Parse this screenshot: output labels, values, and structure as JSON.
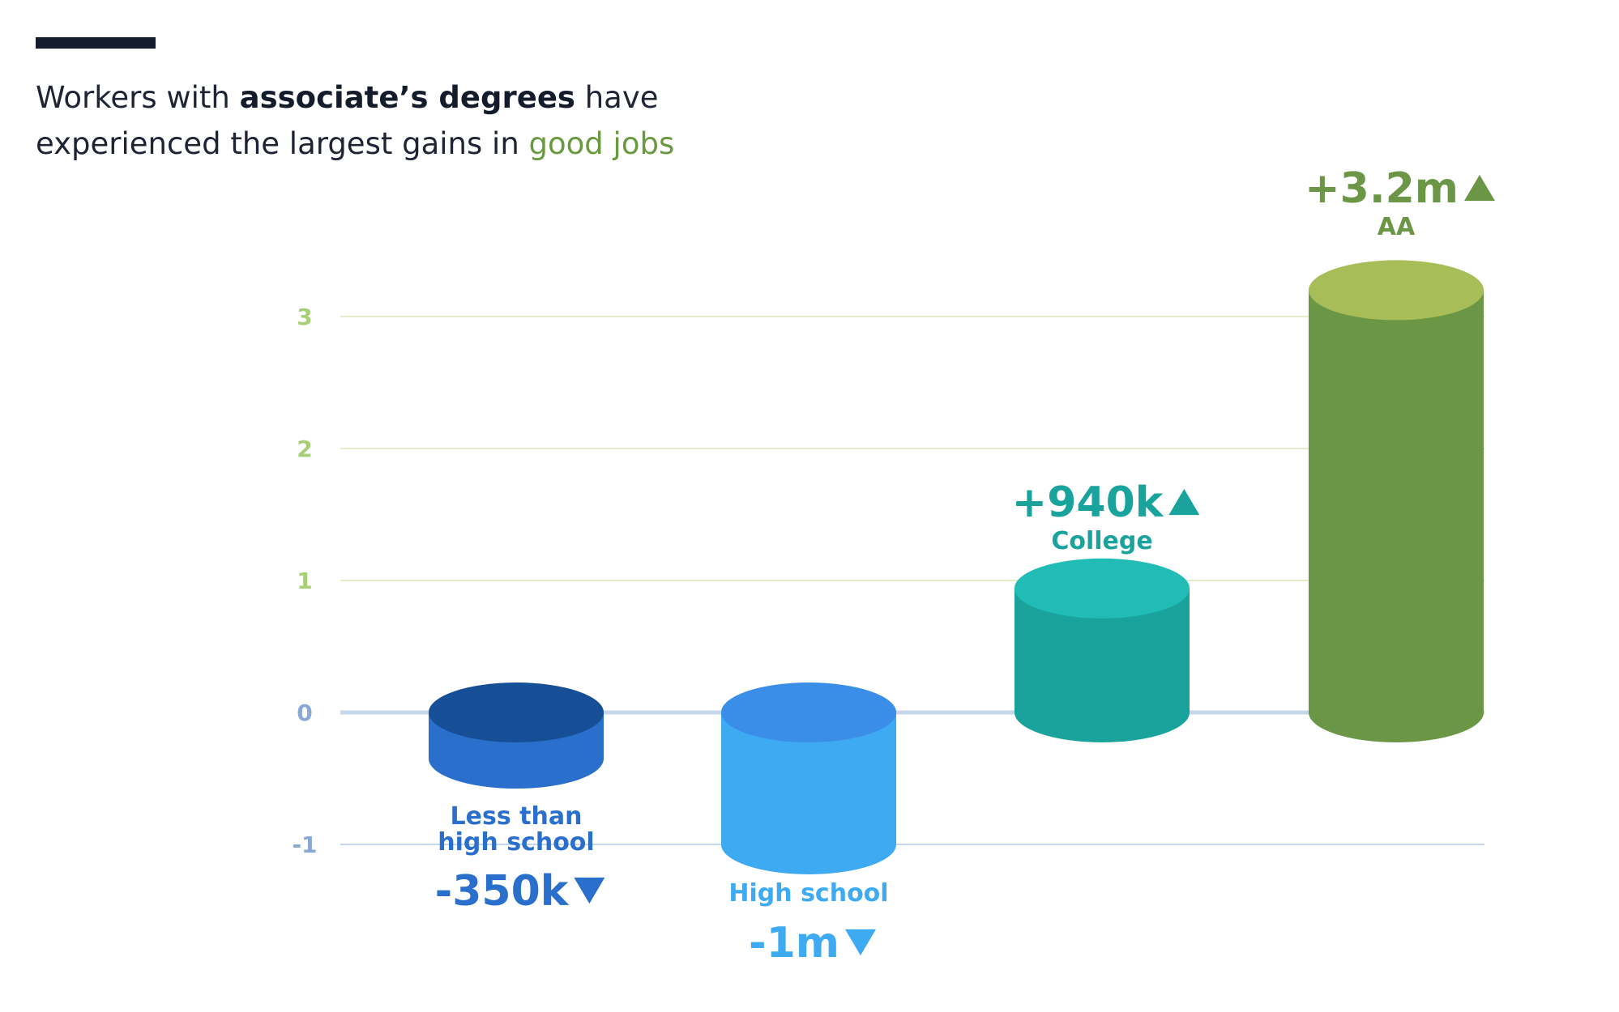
{
  "header": {
    "headline_part1": "Workers with ",
    "headline_bold": "associate’s degrees",
    "headline_part2": " have experienced the largest gains in ",
    "headline_green": "good jobs"
  },
  "chart_data": {
    "type": "bar",
    "title": "Workers with associate’s degrees have experienced the largest gains in good jobs",
    "unit": "millions",
    "ylim": [
      -1,
      3
    ],
    "yticks": [
      3,
      2,
      1,
      0,
      -1
    ],
    "ytick_labels": [
      "3",
      "2",
      "1",
      "0",
      "-1"
    ],
    "grid": true,
    "categories": [
      "Less than high school",
      "High school",
      "College",
      "AA"
    ],
    "category_labels": [
      [
        "Less than",
        "high school"
      ],
      [
        "High school"
      ],
      [
        "College"
      ],
      [
        "AA"
      ]
    ],
    "values": [
      -0.35,
      -1.0,
      0.94,
      3.2
    ],
    "value_labels": [
      "-350k",
      "-1m",
      "+940k",
      "+3.2m"
    ],
    "direction": [
      "down",
      "down",
      "up",
      "up"
    ],
    "colors": {
      "side": [
        "#2a6fcc",
        "#3daaf2",
        "#1aa39d",
        "#6b9646"
      ],
      "top": [
        "#174f97",
        "#3a8ee8",
        "#21bcb6",
        "#a7bd57"
      ],
      "label": [
        "#2a6fcc",
        "#3daaf2",
        "#1aa39d",
        "#6b9646"
      ],
      "tick_positive": "#a8cf78",
      "tick_nonpositive": "#8aa8d4",
      "zero_line": "#c7d6ea",
      "grid_positive": "#e3edcb",
      "grid_negative": "#c7d6ea"
    }
  }
}
